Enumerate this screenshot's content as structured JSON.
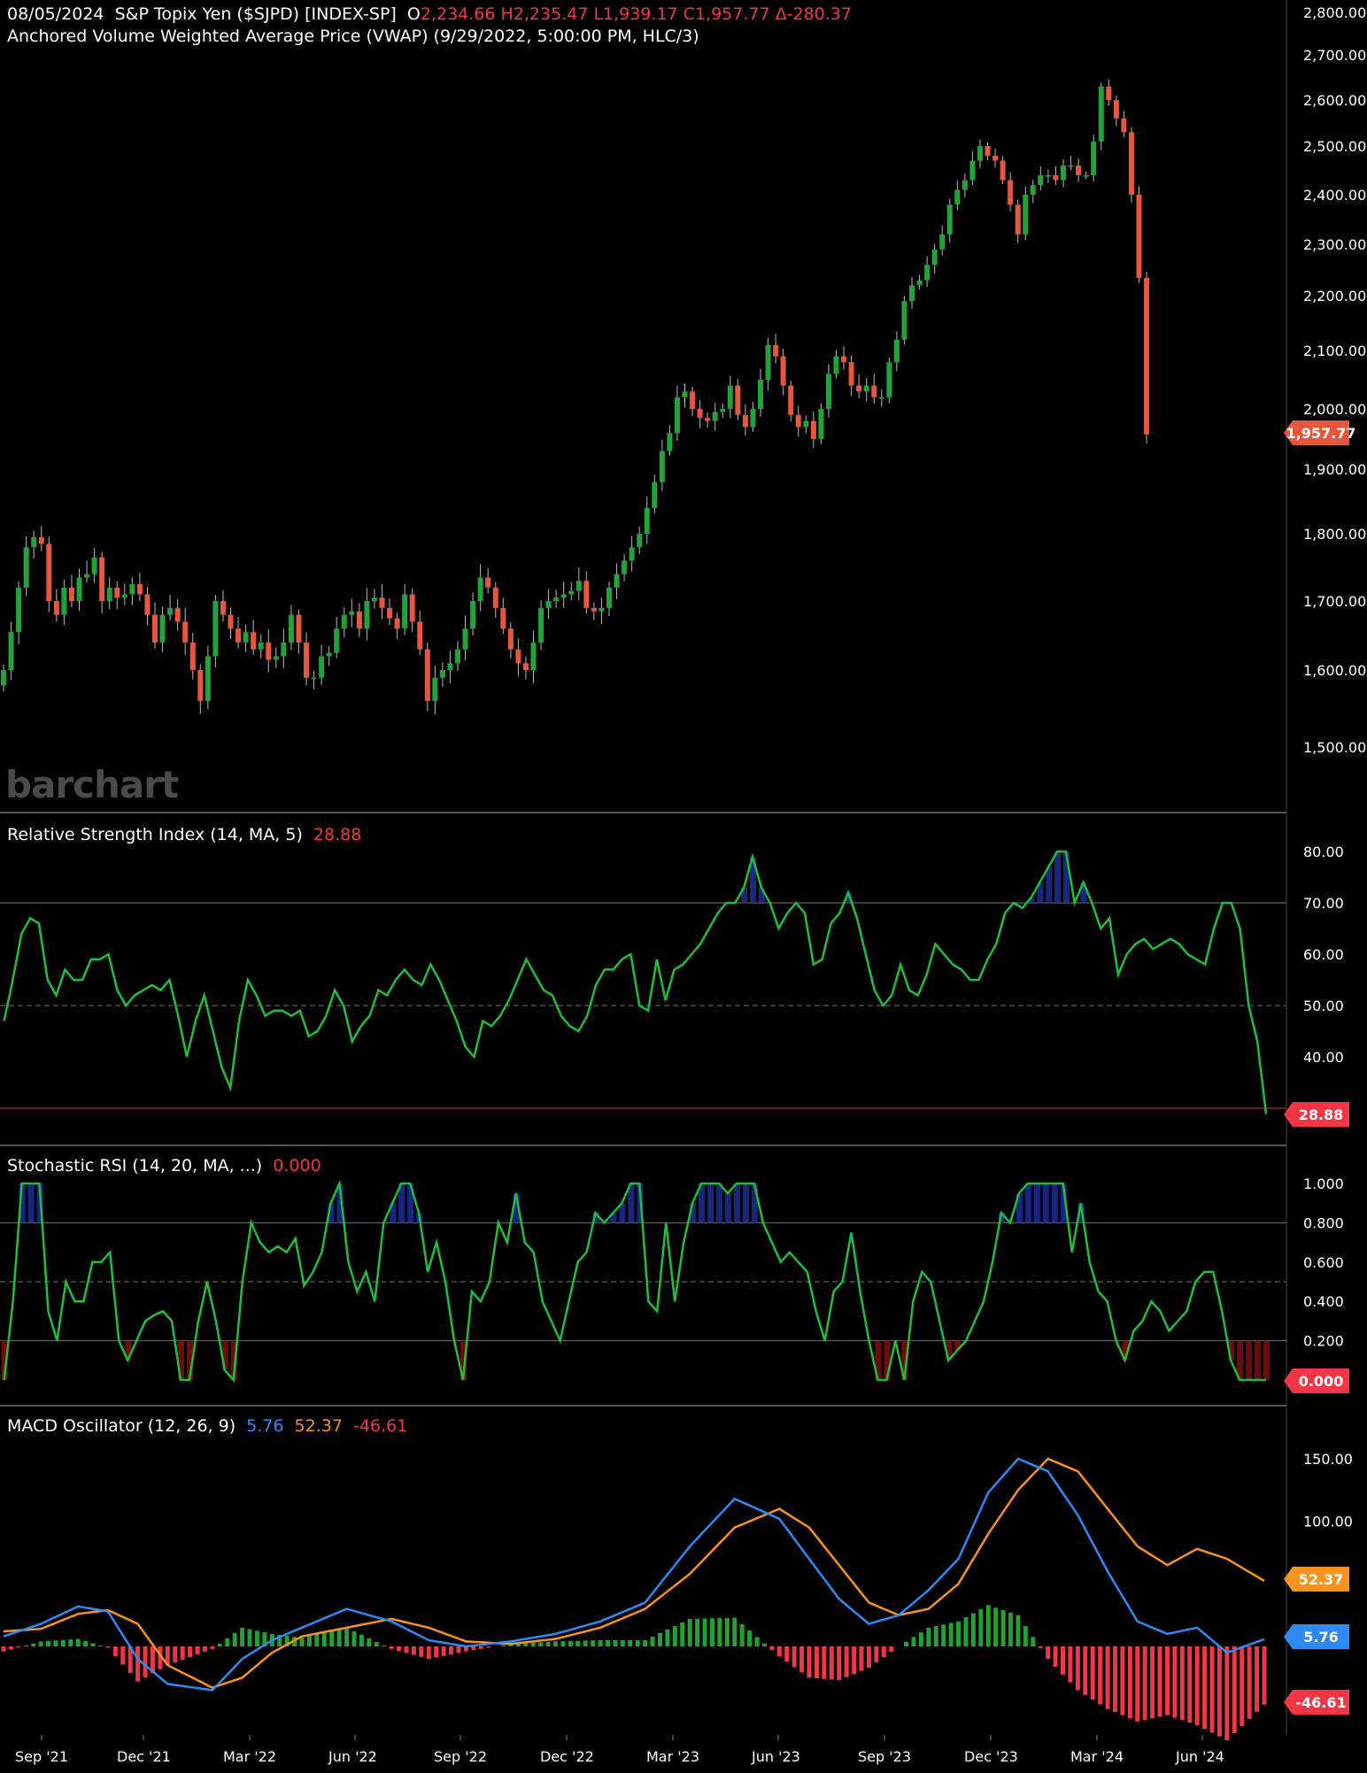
{
  "price_panel": {
    "date": "08/05/2024",
    "symbol": "S&P Topix Yen ($SJPD) [INDEX-SP]",
    "ohlc_prefix": "O",
    "ohlc": "2,234.66 H2,235.47 L1,939.17 C1,957.77 Δ-280.37",
    "study": "Anchored Volume Weighted Average Price (VWAP)  (9/29/2022, 5:00:00 PM, HLC/3)",
    "last_badge": "1,957.77",
    "watermark": "barchart"
  },
  "rsi_panel": {
    "label": "Relative Strength Index  (14, MA, 5)",
    "value": "28.88",
    "badge": "28.88"
  },
  "stoch_panel": {
    "label": "Stochastic RSI  (14, 20, MA, ...)",
    "value": "0.000",
    "badge": "0.000"
  },
  "macd_panel": {
    "label": "MACD Oscillator  (12, 26, 9)",
    "macd": "5.76",
    "signal": "52.37",
    "hist": "-46.61",
    "badge_macd": "5.76",
    "badge_signal": "52.37",
    "badge_hist": "-46.61"
  },
  "colors": {
    "up": "#22a33a",
    "down": "#e8573c",
    "osc": "#1fbf3a",
    "ob": "#1a2fff",
    "os": "#ff1a1a",
    "macd": "#2e8bf5",
    "signal": "#f7931e",
    "hist_up": "#1fa32e",
    "hist_down": "#f23645"
  },
  "chart_data": [
    {
      "type": "candlestick",
      "title": "S&P Topix Yen ($SJPD) [INDEX-SP]",
      "ylim": [
        1440,
        2800
      ],
      "y_ticks": [
        "1,500.00",
        "1,600.00",
        "1,700.00",
        "1,800.00",
        "1,900.00",
        "2,000.00",
        "2,100.00",
        "2,200.00",
        "2,300.00",
        "2,400.00",
        "2,500.00",
        "2,600.00",
        "2,700.00",
        "2,800.00"
      ],
      "x_ticks": [
        "Sep '21",
        "Dec '21",
        "Mar '22",
        "Jun '22",
        "Sep '22",
        "Dec '22",
        "Mar '23",
        "Jun '23",
        "Sep '23",
        "Dec '23",
        "Mar '24",
        "Jun '24"
      ],
      "closes": [
        1600,
        1655,
        1720,
        1780,
        1795,
        1785,
        1700,
        1680,
        1720,
        1700,
        1735,
        1740,
        1765,
        1700,
        1720,
        1705,
        1710,
        1725,
        1710,
        1680,
        1640,
        1680,
        1690,
        1670,
        1640,
        1600,
        1560,
        1620,
        1700,
        1680,
        1660,
        1640,
        1655,
        1630,
        1640,
        1615,
        1620,
        1640,
        1680,
        1640,
        1590,
        1590,
        1620,
        1625,
        1660,
        1680,
        1685,
        1660,
        1700,
        1705,
        1690,
        1675,
        1660,
        1710,
        1670,
        1630,
        1560,
        1590,
        1600,
        1610,
        1630,
        1660,
        1700,
        1735,
        1720,
        1690,
        1660,
        1630,
        1610,
        1600,
        1640,
        1690,
        1700,
        1705,
        1710,
        1715,
        1730,
        1690,
        1685,
        1690,
        1720,
        1740,
        1760,
        1780,
        1800,
        1840,
        1880,
        1930,
        1960,
        2020,
        2030,
        2000,
        1985,
        1980,
        1995,
        2000,
        2040,
        1990,
        1970,
        2000,
        2050,
        2110,
        2090,
        2040,
        1990,
        1970,
        1980,
        1950,
        2000,
        2060,
        2090,
        2080,
        2040,
        2030,
        2040,
        2020,
        2020,
        2080,
        2120,
        2190,
        2220,
        2230,
        2260,
        2290,
        2320,
        2380,
        2410,
        2430,
        2470,
        2500,
        2480,
        2470,
        2430,
        2380,
        2320,
        2400,
        2420,
        2440,
        2440,
        2430,
        2460,
        2460,
        2440,
        2440,
        2510,
        2630,
        2600,
        2560,
        2530,
        2400,
        2234.66,
        1957.77
      ]
    },
    {
      "type": "line",
      "title": "Relative Strength Index  (14, MA, 5)",
      "ylim": [
        25,
        85
      ],
      "y_ticks": [
        "40.00",
        "50.00",
        "60.00",
        "70.00",
        "80.00"
      ],
      "levels": [
        30,
        50,
        70
      ],
      "last": 28.88
    },
    {
      "type": "line",
      "title": "Stochastic RSI  (14, 20, MA, ...)",
      "ylim": [
        -0.1,
        1.1
      ],
      "y_ticks": [
        "0.200",
        "0.400",
        "0.600",
        "0.800",
        "1.000"
      ],
      "levels": [
        0.2,
        0.5,
        0.8
      ],
      "last": 0.0
    },
    {
      "type": "line",
      "title": "MACD Oscillator  (12, 26, 9)",
      "ylim": [
        -60,
        170
      ],
      "y_ticks": [
        "100.00",
        "150.00"
      ],
      "series": [
        {
          "name": "5.76",
          "x": [
            0,
            5,
            10,
            14,
            18,
            22,
            28,
            32,
            36,
            40,
            46,
            52,
            57,
            62,
            68,
            74,
            80,
            86,
            92,
            98,
            104,
            108,
            112,
            116,
            120,
            124,
            128,
            132,
            136,
            140,
            144,
            148,
            152,
            156,
            160,
            164,
            169
          ],
          "values": [
            8,
            18,
            32,
            28,
            -10,
            -30,
            -35,
            -10,
            5,
            15,
            30,
            20,
            5,
            0,
            4,
            10,
            20,
            35,
            80,
            118,
            102,
            70,
            38,
            18,
            25,
            45,
            70,
            123,
            150,
            140,
            105,
            60,
            20,
            10,
            15,
            -5,
            5.76
          ]
        },
        {
          "name": "52.37",
          "x": [
            0,
            5,
            10,
            14,
            18,
            22,
            28,
            32,
            36,
            40,
            46,
            52,
            57,
            62,
            68,
            74,
            80,
            86,
            92,
            98,
            104,
            108,
            112,
            116,
            120,
            124,
            128,
            132,
            136,
            140,
            144,
            148,
            152,
            156,
            160,
            164,
            169
          ],
          "values": [
            12,
            14,
            26,
            29,
            18,
            -15,
            -33,
            -25,
            -5,
            8,
            15,
            22,
            15,
            4,
            2,
            6,
            15,
            30,
            58,
            95,
            110,
            95,
            65,
            35,
            25,
            30,
            50,
            90,
            125,
            150,
            140,
            110,
            80,
            65,
            78,
            70,
            52.37
          ]
        }
      ]
    }
  ]
}
